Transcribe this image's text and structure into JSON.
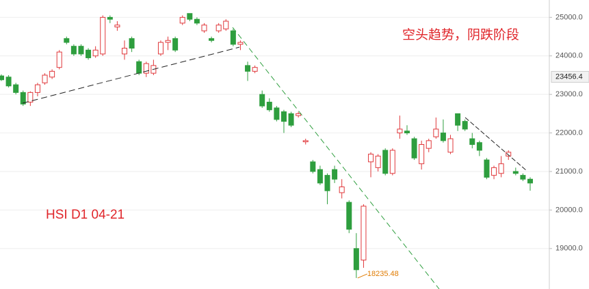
{
  "chart_data": {
    "type": "candlestick",
    "title": "空头趋势，阴跌阶段",
    "subtitle": "HSI  D1 04-21",
    "up_color": "#e0373a",
    "down_color": "#2e9e3e",
    "open": [
      23480,
      23450,
      23250,
      23050,
      22800,
      23050,
      23300,
      23450,
      23700,
      24450,
      24250,
      24250,
      24150,
      24000,
      24050,
      25000,
      24750,
      24050,
      24450,
      23850,
      23550,
      23550,
      24050,
      24350,
      24450,
      24850,
      25100,
      24950,
      24650,
      24450,
      24650,
      24700,
      24650,
      24300,
      23750,
      23600,
      23000,
      22800,
      22650,
      22550,
      22500,
      22450,
      21770,
      21250,
      21050,
      20900,
      21050,
      20450,
      20200,
      19000,
      18700,
      21250,
      21100,
      21550,
      20950,
      22000,
      22050,
      21850,
      21200,
      21600,
      21900,
      22000,
      21500,
      22500,
      22300,
      21850,
      21750,
      21300,
      20900,
      20950,
      21400,
      21000,
      20900,
      20800
    ],
    "high": [
      23520,
      23500,
      23300,
      23100,
      23080,
      23300,
      23550,
      23650,
      24150,
      24500,
      24300,
      24300,
      24200,
      24250,
      25050,
      25050,
      24900,
      24400,
      24500,
      23900,
      23850,
      23900,
      24400,
      24500,
      24500,
      25050,
      25100,
      25000,
      24850,
      24500,
      24850,
      24950,
      24700,
      24400,
      23850,
      23750,
      23100,
      22900,
      22700,
      22600,
      22550,
      22550,
      21850,
      21300,
      21150,
      20950,
      21150,
      20800,
      20250,
      19400,
      20150,
      21500,
      21450,
      21600,
      21600,
      22450,
      22200,
      21900,
      21800,
      21850,
      22400,
      22350,
      21950,
      22500,
      22350,
      22000,
      21800,
      21350,
      21150,
      21400,
      21550,
      21100,
      20950,
      20850
    ],
    "low": [
      23350,
      23180,
      23000,
      22700,
      22700,
      22950,
      23250,
      23400,
      23650,
      24300,
      24000,
      24000,
      23900,
      23950,
      24000,
      24850,
      24650,
      23900,
      24100,
      23500,
      23450,
      23500,
      24000,
      24150,
      24100,
      24800,
      24900,
      24800,
      24600,
      24350,
      24600,
      24650,
      24250,
      24150,
      23350,
      23550,
      22650,
      22550,
      22300,
      22000,
      22150,
      22400,
      21700,
      20950,
      20650,
      20150,
      20700,
      20300,
      19400,
      18235.48,
      18500,
      20850,
      21000,
      20900,
      20900,
      21850,
      21950,
      21300,
      21050,
      21500,
      21850,
      21750,
      21450,
      22050,
      22050,
      21600,
      21400,
      20800,
      20800,
      20850,
      21300,
      20900,
      20750,
      20500
    ],
    "close": [
      23380,
      23220,
      23050,
      22750,
      23050,
      23250,
      23500,
      23600,
      24100,
      24350,
      24050,
      24050,
      23950,
      24150,
      25000,
      24950,
      24800,
      24200,
      24200,
      23550,
      23800,
      23750,
      24350,
      24400,
      24150,
      25000,
      24950,
      24850,
      24800,
      24400,
      24800,
      24900,
      24300,
      24350,
      23600,
      23700,
      22700,
      22600,
      22350,
      22300,
      22200,
      22500,
      21800,
      21000,
      20700,
      20500,
      20800,
      20600,
      19500,
      18450,
      20100,
      21450,
      21400,
      20950,
      21550,
      22100,
      22000,
      21350,
      21700,
      21800,
      22100,
      21800,
      21850,
      22200,
      22100,
      21700,
      21550,
      20850,
      21100,
      21200,
      21500,
      20950,
      20800,
      20700
    ],
    "low_label": {
      "value": 18235.48,
      "label": "18235.48"
    },
    "last_price": {
      "value": 23456.4,
      "label": "23456.4"
    },
    "ylim": [
      17950,
      25450
    ],
    "yticks": [
      {
        "value": 19000,
        "label": "19000.0"
      },
      {
        "value": 20000,
        "label": "20000.0"
      },
      {
        "value": 21000,
        "label": "21000.0"
      },
      {
        "value": 22000,
        "label": "22000.0"
      },
      {
        "value": 23000,
        "label": "23000.0"
      },
      {
        "value": 24000,
        "label": "24000.0"
      },
      {
        "value": 25000,
        "label": "25000.0"
      }
    ],
    "grid": true
  }
}
